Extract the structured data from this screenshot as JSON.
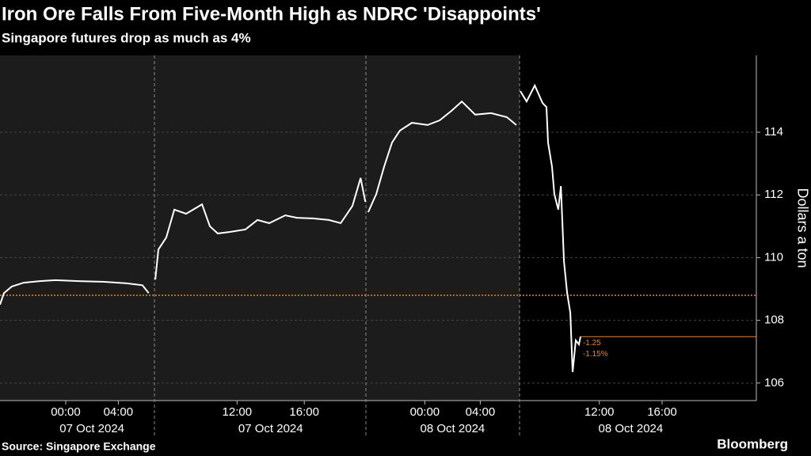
{
  "chart_data": {
    "type": "line",
    "title": "Iron Ore Falls From Five-Month High as NDRC 'Disappoints'",
    "subtitle": "Singapore futures drop as much as 4%",
    "y_label": "Dollars a ton",
    "source": "Source: Singapore Exchange",
    "logo": "Bloomberg",
    "color": "#ffffff",
    "ylim": [
      105.44,
      116.45
    ],
    "yticks": [
      106,
      108,
      110,
      112,
      114
    ],
    "grid": true,
    "reference_line": {
      "value": 108.8,
      "color": "#e8843a"
    },
    "last_price": {
      "value": 107.48,
      "color": "#e8843a",
      "labels": [
        "-1.25",
        "-1.15%"
      ]
    },
    "sessions": [
      {
        "xlim": [
          "2024-10-06T19:00",
          "2024-10-07T06:45"
        ],
        "date_label": "07 Oct 2024",
        "xticks": [
          {
            "value": "2024-10-07T00:00",
            "label": "00:00"
          },
          {
            "value": "2024-10-07T04:00",
            "label": "04:00"
          }
        ],
        "x": [
          "2024-10-06T19:00",
          "2024-10-06T19:18",
          "2024-10-06T19:54",
          "2024-10-06T20:48",
          "2024-10-06T22:01",
          "2024-10-06T23:13",
          "2024-10-07T01:01",
          "2024-10-07T02:50",
          "2024-10-07T04:38",
          "2024-10-07T05:50",
          "2024-10-07T06:19"
        ],
        "values": [
          108.5,
          108.87,
          109.08,
          109.2,
          109.25,
          109.28,
          109.25,
          109.23,
          109.18,
          109.12,
          108.87
        ]
      },
      {
        "xlim": [
          "2024-10-07T07:05",
          "2024-10-07T19:40"
        ],
        "date_label": "07 Oct 2024",
        "xticks": [
          {
            "value": "2024-10-07T12:00",
            "label": "12:00"
          },
          {
            "value": "2024-10-07T16:00",
            "label": "16:00"
          }
        ],
        "x": [
          "2024-10-07T07:08",
          "2024-10-07T07:19",
          "2024-10-07T07:47",
          "2024-10-07T08:16",
          "2024-10-07T08:58",
          "2024-10-07T09:55",
          "2024-10-07T10:23",
          "2024-10-07T10:51",
          "2024-10-07T11:34",
          "2024-10-07T12:30",
          "2024-10-07T13:13",
          "2024-10-07T13:55",
          "2024-10-07T14:52",
          "2024-10-07T15:34",
          "2024-10-07T16:31",
          "2024-10-07T17:28",
          "2024-10-07T18:10",
          "2024-10-07T18:52",
          "2024-10-07T19:21",
          "2024-10-07T19:38"
        ],
        "values": [
          109.3,
          110.26,
          110.64,
          111.53,
          111.4,
          111.7,
          111.0,
          110.77,
          110.82,
          110.9,
          111.2,
          111.1,
          111.35,
          111.27,
          111.25,
          111.2,
          111.1,
          111.65,
          112.54,
          111.78
        ]
      },
      {
        "xlim": [
          "2024-10-07T19:45",
          "2024-10-08T06:50"
        ],
        "date_label": "08 Oct 2024",
        "xticks": [
          {
            "value": "2024-10-08T00:00",
            "label": "00:00"
          },
          {
            "value": "2024-10-08T04:00",
            "label": "04:00"
          }
        ],
        "x": [
          "2024-10-07T19:55",
          "2024-10-07T20:30",
          "2024-10-07T21:04",
          "2024-10-07T21:38",
          "2024-10-07T22:12",
          "2024-10-07T23:04",
          "2024-10-08T00:12",
          "2024-10-08T01:04",
          "2024-10-08T01:55",
          "2024-10-08T02:40",
          "2024-10-08T03:38",
          "2024-10-08T04:47",
          "2024-10-08T05:55",
          "2024-10-08T06:36"
        ],
        "values": [
          111.45,
          112.03,
          112.9,
          113.67,
          114.05,
          114.3,
          114.23,
          114.38,
          114.68,
          114.98,
          114.56,
          114.61,
          114.48,
          114.23
        ]
      },
      {
        "xlim": [
          "2024-10-08T06:55",
          "2024-10-08T21:30"
        ],
        "date_label": "08 Oct 2024",
        "xticks": [
          {
            "value": "2024-10-08T12:00",
            "label": "12:00"
          },
          {
            "value": "2024-10-08T16:00",
            "label": "16:00"
          }
        ],
        "x": [
          "2024-10-08T06:58",
          "2024-10-08T07:22",
          "2024-10-08T07:53",
          "2024-10-08T08:23",
          "2024-10-08T08:38",
          "2024-10-08T08:44",
          "2024-10-08T08:59",
          "2024-10-08T09:08",
          "2024-10-08T09:23",
          "2024-10-08T09:33",
          "2024-10-08T09:45",
          "2024-10-08T09:57",
          "2024-10-08T10:09",
          "2024-10-08T10:18",
          "2024-10-08T10:30",
          "2024-10-08T10:42",
          "2024-10-08T10:48"
        ],
        "values": [
          115.31,
          114.98,
          115.49,
          114.93,
          114.8,
          113.67,
          112.9,
          112.03,
          111.53,
          112.28,
          109.88,
          108.87,
          108.24,
          106.35,
          107.36,
          107.23,
          107.48
        ]
      }
    ]
  }
}
